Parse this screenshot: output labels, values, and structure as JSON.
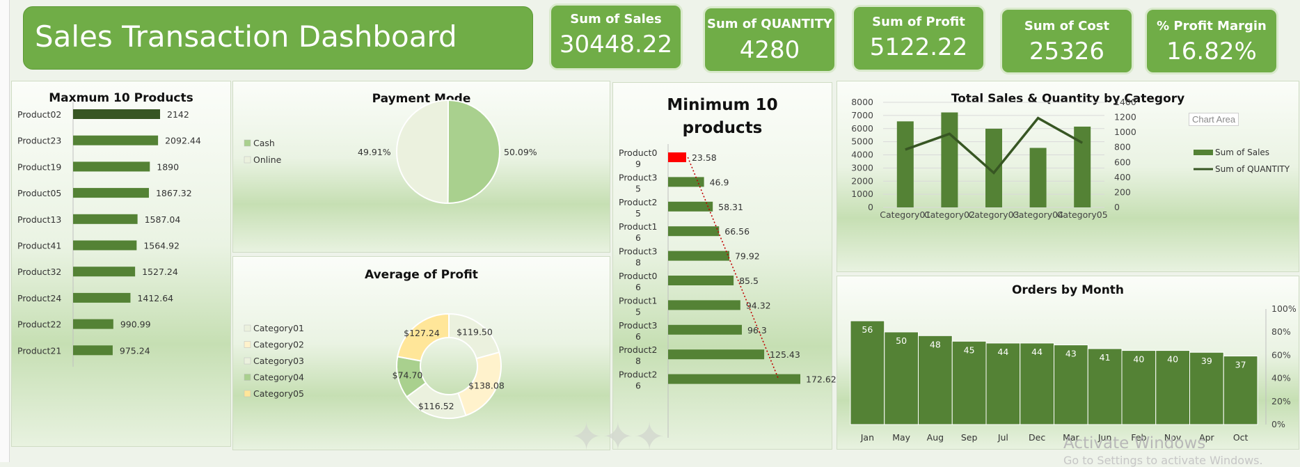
{
  "dashboard": {
    "title": "Sales Transaction Dashboard",
    "kpis": [
      {
        "label": "Sum of Sales",
        "value": "30448.22"
      },
      {
        "label": "Sum of QUANTITY",
        "value": "4280"
      },
      {
        "label": "Sum of Profit",
        "value": "5122.22"
      },
      {
        "label": "Sum of Cost",
        "value": "25326"
      },
      {
        "label": "% Profit Margin",
        "value": "16.82%"
      }
    ],
    "watermark": {
      "line1": "Activate Windows",
      "line2": "Go to Settings to activate Windows."
    },
    "chart_area_label": "Chart Area"
  },
  "colors": {
    "accent": "#70ad47",
    "bar_dark": "#548235",
    "bar_darkest": "#375623",
    "highlight_red": "#ff0000",
    "pie_light": "#ebf1de",
    "pie_green": "#a9d08e",
    "trend_red": "#c00000",
    "gold": "#ffe699",
    "cream": "#fff2cc"
  },
  "chart_data": [
    {
      "id": "max10",
      "type": "bar",
      "orientation": "horizontal",
      "title": "Maxmum 10 Products",
      "categories": [
        "Product02",
        "Product23",
        "Product19",
        "Product05",
        "Product13",
        "Product41",
        "Product32",
        "Product24",
        "Product22",
        "Product21"
      ],
      "values": [
        2142,
        2092.44,
        1890,
        1867.32,
        1587.04,
        1564.92,
        1527.24,
        1412.64,
        990.99,
        975.24
      ],
      "value_labels": [
        "2142",
        "2092.44",
        "1890",
        "1867.32",
        "1587.04",
        "1564.92",
        "1527.24",
        "1412.64",
        "990.99",
        "975.24"
      ],
      "highlight_index": 0
    },
    {
      "id": "payment",
      "type": "pie",
      "title": "Payment Mode",
      "legend": [
        "Cash",
        "Online"
      ],
      "values": [
        50.09,
        49.91
      ],
      "value_labels": [
        "50.09%",
        "49.91%"
      ],
      "legend_position": "left"
    },
    {
      "id": "avgprofit",
      "type": "pie",
      "variant": "doughnut",
      "title": "Average of Profit",
      "legend": [
        "Category01",
        "Category02",
        "Category03",
        "Category04",
        "Category05"
      ],
      "values": [
        119.5,
        138.08,
        116.52,
        74.7,
        127.24
      ],
      "value_labels": [
        "$119.50",
        "$138.08",
        "$116.52",
        "$74.70",
        "$127.24"
      ],
      "legend_position": "left"
    },
    {
      "id": "min10",
      "type": "bar",
      "orientation": "horizontal",
      "title": "Minimum 10 products",
      "categories": [
        "Product09",
        "Product35",
        "Product25",
        "Product16",
        "Product38",
        "Product06",
        "Product15",
        "Product36",
        "Product28",
        "Product26"
      ],
      "values": [
        23.58,
        46.9,
        58.31,
        66.56,
        79.92,
        85.5,
        94.32,
        96.3,
        125.43,
        172.62
      ],
      "value_labels": [
        "23.58",
        "46.9",
        "58.31",
        "66.56",
        "79.92",
        "85.5",
        "94.32",
        "96.3",
        "125.43",
        "172.62"
      ],
      "highlight_index": 0,
      "trendline": "linear"
    },
    {
      "id": "category",
      "type": "bar",
      "title": "Total Sales & Quantity by Category",
      "categories": [
        "Category01",
        "Category02",
        "Category03",
        "Category04",
        "Category05"
      ],
      "series": [
        {
          "name": "Sum of Sales",
          "type": "bar",
          "axis": "left",
          "values": [
            6550,
            7230,
            5990,
            4530,
            6150
          ]
        },
        {
          "name": "Sum of QUANTITY",
          "type": "line",
          "axis": "right",
          "values": [
            770,
            980,
            460,
            1190,
            860
          ]
        }
      ],
      "y_left": {
        "min": 0,
        "max": 8000,
        "ticks": [
          0,
          1000,
          2000,
          3000,
          4000,
          5000,
          6000,
          7000,
          8000
        ]
      },
      "y_right": {
        "min": 0,
        "max": 1400,
        "ticks": [
          0,
          200,
          400,
          600,
          800,
          1000,
          1200,
          1400
        ]
      },
      "legend_position": "right",
      "grid": true
    },
    {
      "id": "months",
      "type": "bar",
      "title": "Orders by Month",
      "categories": [
        "Jan",
        "May",
        "Aug",
        "Sep",
        "Jul",
        "Dec",
        "Mar",
        "Jun",
        "Feb",
        "Nov",
        "Apr",
        "Oct"
      ],
      "values": [
        56,
        50,
        48,
        45,
        44,
        44,
        43,
        41,
        40,
        40,
        39,
        37
      ],
      "value_labels": [
        "56",
        "50",
        "48",
        "45",
        "44",
        "44",
        "43",
        "41",
        "40",
        "40",
        "39",
        "37"
      ],
      "y_right": {
        "ticks": [
          "0%",
          "20%",
          "40%",
          "60%",
          "80%",
          "100%"
        ]
      }
    }
  ]
}
